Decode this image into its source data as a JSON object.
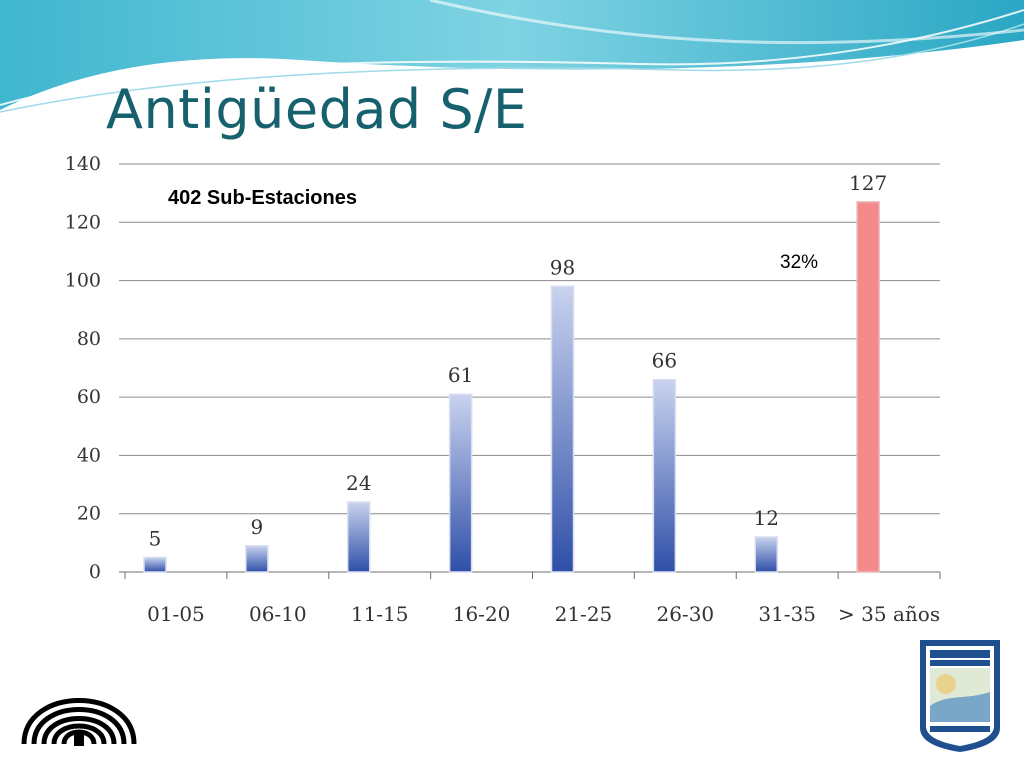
{
  "slide": {
    "title": "Antigüedad S/E"
  },
  "chart_data": {
    "type": "bar",
    "title": "",
    "xlabel": "",
    "ylabel": "",
    "ylim": [
      0,
      140
    ],
    "yticks": [
      0,
      20,
      40,
      60,
      80,
      100,
      120,
      140
    ],
    "categories": [
      "01-05",
      "06-10",
      "11-15",
      "16-20",
      "21-25",
      "26-30",
      "31-35",
      "> 35 años"
    ],
    "values": [
      5,
      9,
      24,
      61,
      98,
      66,
      12,
      127
    ],
    "highlight_index": 7,
    "colors": {
      "bar_top": "#c9d3ef",
      "bar_bottom": "#2f4fa8",
      "highlight": "#f48a8a",
      "gridline": "#8a8a8a"
    },
    "grid": true,
    "annotations": [
      {
        "text": "402 Sub-Estaciones",
        "style": "bold"
      },
      {
        "text": "32%",
        "style": "normal"
      }
    ]
  },
  "logos": {
    "left": "university-arches-logo",
    "right": "responsibility-badge-logo"
  }
}
